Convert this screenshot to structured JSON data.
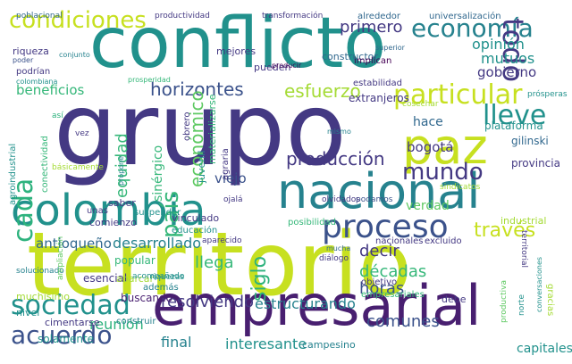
{
  "words": [
    "conflicto",
    "grupo",
    "territorio",
    "empresarial",
    "nacional",
    "colombia",
    "paz",
    "particular",
    "sociedad",
    "acuerdo",
    "proceso",
    "mundo",
    "economía",
    "condiciones",
    "producción",
    "cada",
    "país",
    "todo",
    "lleve",
    "horizontes",
    "esfuerzo",
    "equidad",
    "económico",
    "siglo",
    "través",
    "llega",
    "décadas",
    "decir",
    "horas",
    "comunes",
    "resolviendo",
    "estructurando",
    "interesante",
    "final",
    "reunión",
    "desarrollado",
    "antioqueño",
    "primero",
    "mutuos",
    "opinión",
    "gobierno",
    "beneficios",
    "bogotá",
    "hace",
    "viejo",
    "sinérgico",
    "verdad",
    "capitales",
    "campesino",
    "mejores",
    "constructor",
    "universalización",
    "transformación",
    "productividad",
    "poblacional",
    "alrededor",
    "riqueza",
    "poder",
    "podrían",
    "colombiana",
    "conjunto",
    "prosperidad",
    "pueden",
    "producir",
    "implican",
    "superior",
    "estabilidad",
    "extranjeros",
    "plataforma",
    "gilinski",
    "provincia",
    "industrial",
    "excluido",
    "nacionales",
    "posibilidad",
    "podamos",
    "diálogo",
    "mucha",
    "aparecido",
    "popular",
    "esencial",
    "abarcar",
    "además",
    "buscando",
    "construir",
    "cimentarse",
    "solamente",
    "nivel",
    "muchísimo",
    "solucionado",
    "ampliación",
    "vinculado",
    "educación",
    "suspender",
    "saber",
    "unas",
    "comienzo",
    "agroindustrial",
    "conectividad",
    "vez",
    "así",
    "juvenil",
    "agraria",
    "obrero",
    "materializarse",
    "mismo",
    "prósperas",
    "cosechar",
    "territorial",
    "sindicatos",
    "básicamente",
    "propone",
    "empresariales",
    "objetivo",
    "debe",
    "productiva",
    "gracias",
    "conversaciones",
    "norte",
    "ojalá",
    "olvidados",
    "riquezas",
    "acompañado",
    "xxi"
  ],
  "colors": {
    "yellow": "#c7e020",
    "lime": "#a5db36",
    "green": "#5ec962",
    "teal": "#21918c",
    "cyan": "#26828e",
    "blue": "#31688e",
    "slate": "#3b528b",
    "indigo": "#443983",
    "purple": "#440154",
    "violet": "#481f70",
    "mint": "#35b779",
    "seafoam": "#2db27d"
  }
}
